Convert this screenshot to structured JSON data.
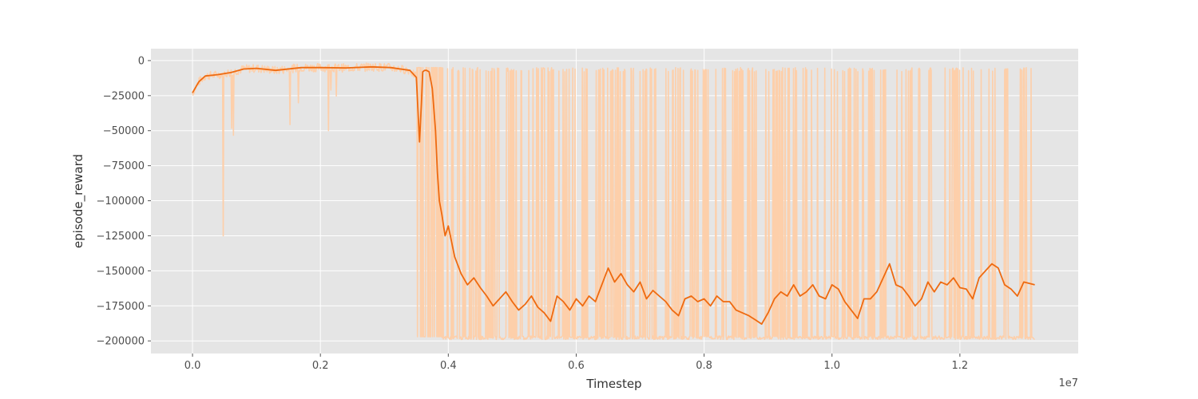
{
  "chart_data": {
    "type": "line",
    "title": "",
    "xlabel": "Timestep",
    "ylabel": "episode_reward",
    "x_offset_label": "1e7",
    "xlim": [
      -0.065,
      1.385
    ],
    "ylim": [
      -209000,
      8500
    ],
    "x_ticks": [
      0.0,
      0.2,
      0.4,
      0.6,
      0.8,
      1.0,
      1.2
    ],
    "x_tick_labels": [
      "0.0",
      "0.2",
      "0.4",
      "0.6",
      "0.8",
      "1.0",
      "1.2"
    ],
    "y_ticks": [
      0,
      -25000,
      -50000,
      -75000,
      -100000,
      -125000,
      -150000,
      -175000,
      -200000
    ],
    "y_tick_labels": [
      "0",
      "−25000",
      "−50000",
      "−75000",
      "−100000",
      "−125000",
      "−150000",
      "−175000",
      "−200000"
    ],
    "grid": true,
    "legend": "none",
    "colors": {
      "raw": "#fdcfaa",
      "smoothed": "#ee6a10",
      "background": "#e5e5e5",
      "grid": "#ffffff"
    },
    "series": [
      {
        "role": "smoothed",
        "x": [
          0.0,
          0.01,
          0.02,
          0.04,
          0.06,
          0.08,
          0.1,
          0.13,
          0.17,
          0.2,
          0.24,
          0.28,
          0.31,
          0.34,
          0.35,
          0.355,
          0.358,
          0.36,
          0.363,
          0.366,
          0.37,
          0.375,
          0.38,
          0.383,
          0.386,
          0.39,
          0.395,
          0.4,
          0.41,
          0.42,
          0.43,
          0.44,
          0.45,
          0.46,
          0.47,
          0.48,
          0.49,
          0.5,
          0.51,
          0.52,
          0.53,
          0.54,
          0.55,
          0.56,
          0.57,
          0.58,
          0.59,
          0.6,
          0.61,
          0.62,
          0.63,
          0.64,
          0.65,
          0.66,
          0.67,
          0.68,
          0.69,
          0.7,
          0.71,
          0.72,
          0.73,
          0.74,
          0.75,
          0.76,
          0.77,
          0.78,
          0.79,
          0.8,
          0.81,
          0.82,
          0.83,
          0.84,
          0.85,
          0.86,
          0.87,
          0.88,
          0.89,
          0.9,
          0.91,
          0.92,
          0.93,
          0.94,
          0.95,
          0.96,
          0.97,
          0.98,
          0.99,
          1.0,
          1.01,
          1.02,
          1.03,
          1.04,
          1.05,
          1.06,
          1.07,
          1.08,
          1.09,
          1.1,
          1.11,
          1.12,
          1.13,
          1.14,
          1.15,
          1.16,
          1.17,
          1.18,
          1.19,
          1.2,
          1.21,
          1.22,
          1.23,
          1.24,
          1.25,
          1.26,
          1.27,
          1.28,
          1.29,
          1.3,
          1.317
        ],
        "y": [
          -23000,
          -15000,
          -11000,
          -10000,
          -8500,
          -6000,
          -5500,
          -7000,
          -5000,
          -5000,
          -5200,
          -4500,
          -5000,
          -7000,
          -12000,
          -58000,
          -30000,
          -8000,
          -7000,
          -7000,
          -8000,
          -20000,
          -50000,
          -80000,
          -100000,
          -110000,
          -125000,
          -118000,
          -140000,
          -152000,
          -160000,
          -155000,
          -162000,
          -168000,
          -175000,
          -170000,
          -165000,
          -172000,
          -178000,
          -174000,
          -168000,
          -176000,
          -180000,
          -186000,
          -168000,
          -172000,
          -178000,
          -170000,
          -175000,
          -168000,
          -172000,
          -160000,
          -148000,
          -158000,
          -152000,
          -160000,
          -165000,
          -158000,
          -170000,
          -164000,
          -168000,
          -172000,
          -178000,
          -182000,
          -170000,
          -168000,
          -172000,
          -170000,
          -175000,
          -168000,
          -172000,
          -172000,
          -178000,
          -180000,
          -182000,
          -185000,
          -188000,
          -180000,
          -170000,
          -165000,
          -168000,
          -160000,
          -168000,
          -165000,
          -160000,
          -168000,
          -170000,
          -160000,
          -163000,
          -172000,
          -178000,
          -184000,
          -170000,
          -170000,
          -165000,
          -155000,
          -145000,
          -160000,
          -162000,
          -168000,
          -175000,
          -170000,
          -158000,
          -165000,
          -158000,
          -160000,
          -155000,
          -162000,
          -163000,
          -170000,
          -155000,
          -150000,
          -145000,
          -148000,
          -160000,
          -163000,
          -168000,
          -158000,
          -160000
        ]
      }
    ]
  }
}
